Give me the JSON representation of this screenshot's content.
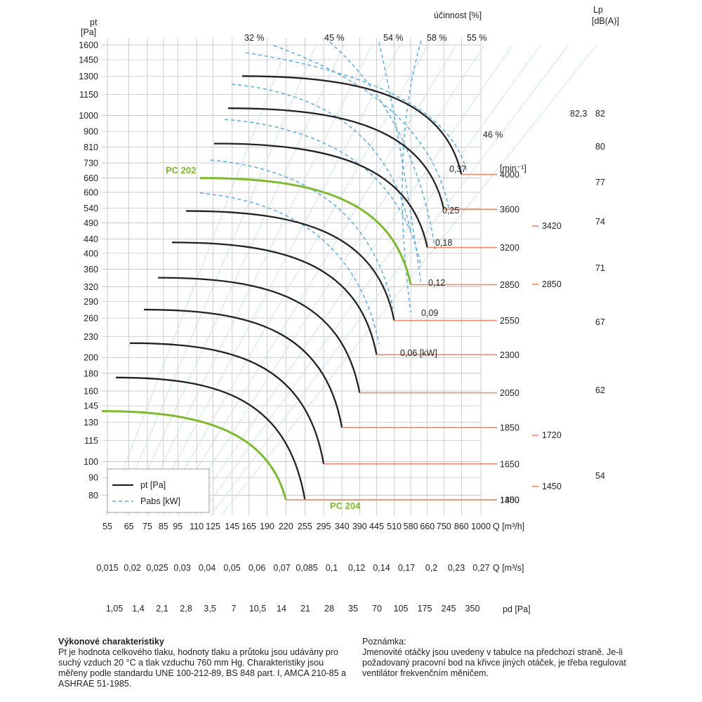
{
  "chart_data": {
    "type": "line",
    "colors": {
      "pt": "#222222",
      "pabs": "#5aaee6",
      "highlight": "#7dbb2c",
      "speed": "#ec8a6a",
      "grid": "#b9b9b9",
      "fan": "#c9dcef"
    },
    "y_axis": {
      "label_top": "pt",
      "label_unit": "[Pa]",
      "scale": "log",
      "ticks": [
        1600,
        1450,
        1300,
        1150,
        1000,
        900,
        810,
        730,
        660,
        600,
        540,
        490,
        440,
        400,
        360,
        320,
        290,
        260,
        230,
        200,
        180,
        160,
        145,
        130,
        115,
        100,
        90,
        80
      ]
    },
    "x_axis_flow_h": {
      "unit": "Q [m³/h]",
      "scale": "log",
      "ticks": [
        "55",
        "65",
        "75",
        "85",
        "95",
        "110",
        "125",
        "145",
        "165",
        "190",
        "220",
        "255",
        "295",
        "340",
        "390",
        "445",
        "510",
        "580",
        "660",
        "750",
        "860",
        "1000"
      ]
    },
    "x_axis_flow_s": {
      "unit": "Q [m³/s]",
      "ticks": [
        "0,015",
        "0,02",
        "0,025",
        "0,03",
        "0,04",
        "0,05",
        "0,06",
        "0,07",
        "0,085",
        "0,1",
        "0,12",
        "0,14",
        "0,17",
        "0,2",
        "0,23",
        "0,27"
      ]
    },
    "x_axis_dynamic": {
      "unit": "pd [Pa]",
      "ticks": [
        "1,05",
        "1,4",
        "2,1",
        "2,8",
        "3,5",
        "7",
        "10,5",
        "14",
        "21",
        "28",
        "35",
        "70",
        "105",
        "175",
        "245",
        "350"
      ]
    },
    "efficiency": {
      "label": "účinnost [%]",
      "values": [
        "32 %",
        "45 %",
        "54 %",
        "58 %",
        "55 %"
      ],
      "inner": "46 %"
    },
    "noise": {
      "label": "Lp",
      "unit": "[dB(A)]",
      "marker": "82,3",
      "values": [
        "82",
        "80",
        "77",
        "74",
        "71",
        "67",
        "62",
        "54"
      ]
    },
    "speed_unit": "[min⁻¹]",
    "power_labels": [
      "0,37",
      "0,25",
      "0,18",
      "0,12",
      "0,09",
      "0,06 [kW]"
    ],
    "speeds": [
      {
        "rpm": "4000",
        "pmax": 1300,
        "qend": 860
      },
      {
        "rpm": "3600",
        "pmax": 1050,
        "qend": 750
      },
      {
        "rpm": "3200",
        "pmax": 830,
        "qend": 660
      },
      {
        "rpm": "2850",
        "pmax": 660,
        "qend": 580
      },
      {
        "rpm": "2550",
        "pmax": 530,
        "qend": 510
      },
      {
        "rpm": "2300",
        "pmax": 430,
        "qend": 445
      },
      {
        "rpm": "2050",
        "pmax": 340,
        "qend": 390
      },
      {
        "rpm": "1850",
        "pmax": 275,
        "qend": 340
      },
      {
        "rpm": "1650",
        "pmax": 220,
        "qend": 295
      },
      {
        "rpm": "1450",
        "pmax": 175,
        "qend": 255
      },
      {
        "rpm": "1300",
        "pmax": 140,
        "qend": 220
      }
    ],
    "intermediate_speeds": [
      "3420",
      "2850",
      "1720",
      "1450"
    ],
    "highlights": [
      "PC 202",
      "PC 204"
    ],
    "legend": [
      "pt [Pa]",
      "Pabs [kW]"
    ]
  },
  "notes": {
    "left_title": "Výkonové charakteristiky",
    "left_text": "Pt je hodnota celkového tlaku, hodnoty tlaku a průtoku jsou udávány pro suchý vzduch 20 °C a tlak vzduchu 760 mm Hg. Charakteristiky jsou měřeny podle standardu UNE 100-212-89, BS 848 part. I, AMCA 210-85 a ASHRAE 51-1985.",
    "right_title": "Poznámka:",
    "right_text": "Jmenovité otáčky jsou uvedeny v tabulce na předchozí straně. Je-li požadovaný pracovní bod na křivce jiných otáček, je třeba regulovat ventilátor frekvenčním měničem."
  }
}
